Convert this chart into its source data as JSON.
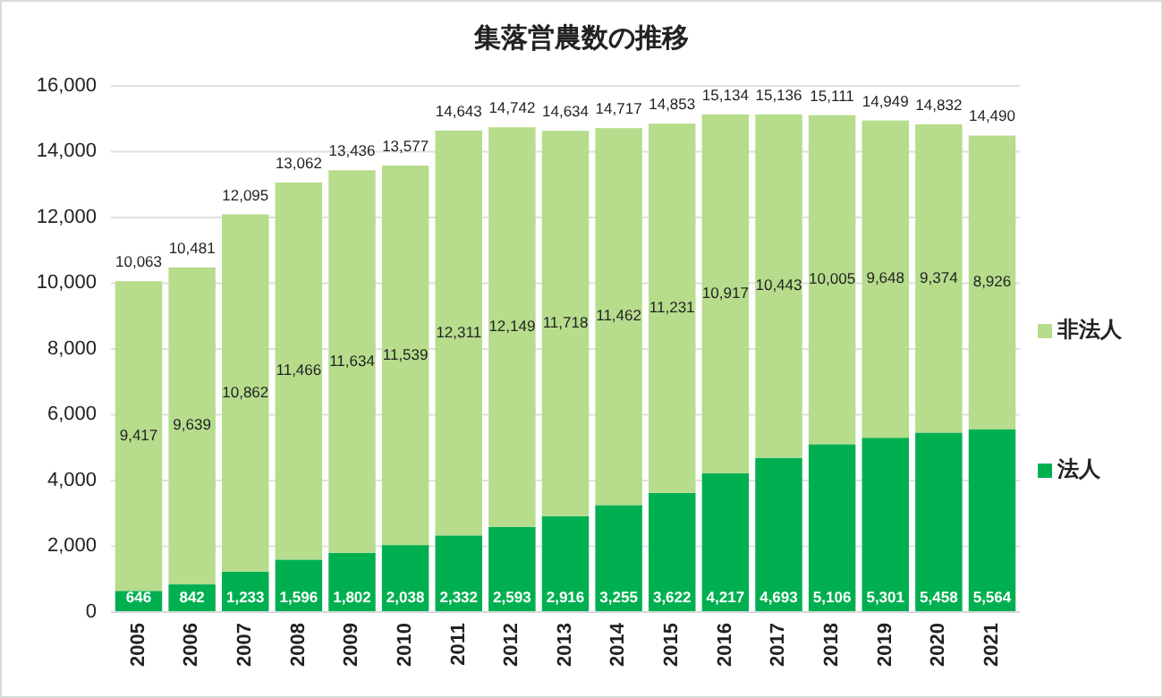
{
  "chart_data": {
    "type": "bar",
    "title": "集落営農数の推移",
    "stacked": true,
    "grid": "y",
    "legend": "right",
    "categories": [
      "2005",
      "2006",
      "2007",
      "2008",
      "2009",
      "2010",
      "2011",
      "2012",
      "2013",
      "2014",
      "2015",
      "2016",
      "2017",
      "2018",
      "2019",
      "2020",
      "2021"
    ],
    "series": [
      {
        "name": "法人",
        "color": "#00b050",
        "values": [
          646,
          842,
          1233,
          1596,
          1802,
          2038,
          2332,
          2593,
          2916,
          3255,
          3622,
          4217,
          4693,
          5106,
          5301,
          5458,
          5564
        ],
        "value_labels": [
          "646",
          "842",
          "1,233",
          "1,596",
          "1,802",
          "2,038",
          "2,332",
          "2,593",
          "2,916",
          "3,255",
          "3,622",
          "4,217",
          "4,693",
          "5,106",
          "5,301",
          "5,458",
          "5,564"
        ]
      },
      {
        "name": "非法人",
        "color": "#b6dc8c",
        "values": [
          9417,
          9639,
          10862,
          11466,
          11634,
          11539,
          12311,
          12149,
          11718,
          11462,
          11231,
          10917,
          10443,
          10005,
          9648,
          9374,
          8926
        ],
        "value_labels": [
          "9,417",
          "9,639",
          "10,862",
          "11,466",
          "11,634",
          "11,539",
          "12,311",
          "12,149",
          "11,718",
          "11,462",
          "11,231",
          "10,917",
          "10,443",
          "10,005",
          "9,648",
          "9,374",
          "8,926"
        ]
      }
    ],
    "totals": [
      "10,063",
      "10,481",
      "12,095",
      "13,062",
      "13,436",
      "13,577",
      "14,643",
      "14,742",
      "14,634",
      "14,717",
      "14,853",
      "15,134",
      "15,136",
      "15,111",
      "14,949",
      "14,832",
      "14,490"
    ],
    "ylim": [
      0,
      16000
    ],
    "yticks": [
      {
        "value": 0,
        "label": "0"
      },
      {
        "value": 2000,
        "label": "2,000"
      },
      {
        "value": 4000,
        "label": "4,000"
      },
      {
        "value": 6000,
        "label": "6,000"
      },
      {
        "value": 8000,
        "label": "8,000"
      },
      {
        "value": 10000,
        "label": "10,000"
      },
      {
        "value": 12000,
        "label": "12,000"
      },
      {
        "value": 14000,
        "label": "14,000"
      },
      {
        "value": 16000,
        "label": "16,000"
      }
    ]
  }
}
